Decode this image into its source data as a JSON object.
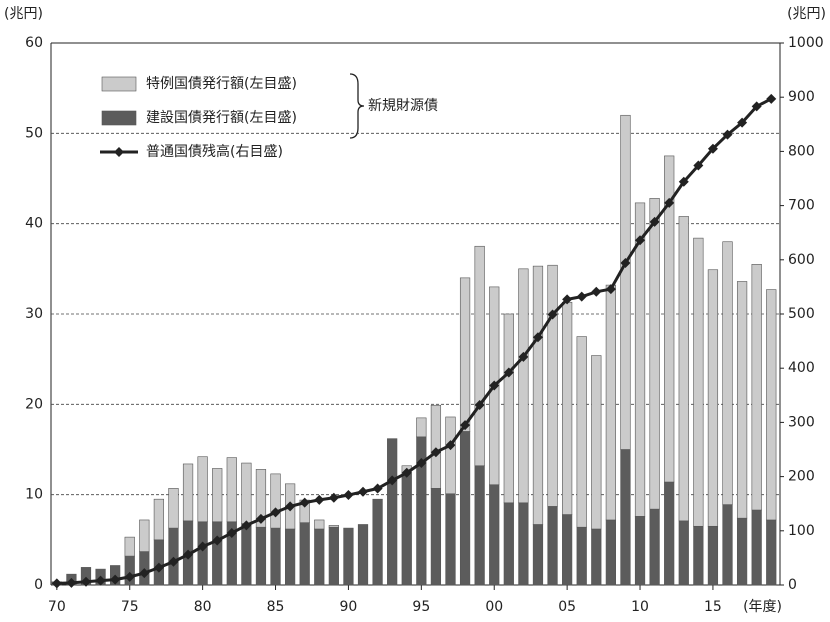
{
  "chart_data": {
    "type": "bar-line",
    "ylabel": "(兆円)",
    "y2label": "(兆円)",
    "xlabel": "(年度)",
    "annotation": "新規財源債",
    "x": [
      1970,
      1971,
      1972,
      1973,
      1974,
      1975,
      1976,
      1977,
      1978,
      1979,
      1980,
      1981,
      1982,
      1983,
      1984,
      1985,
      1986,
      1987,
      1988,
      1989,
      1990,
      1991,
      1992,
      1993,
      1994,
      1995,
      1996,
      1997,
      1998,
      1999,
      2000,
      2001,
      2002,
      2003,
      2004,
      2005,
      2006,
      2007,
      2008,
      2009,
      2010,
      2011,
      2012,
      2013,
      2014,
      2015,
      2016,
      2017,
      2018,
      2019
    ],
    "series": [
      {
        "name": "建設国債発行額(左目盛)",
        "color": "#5c5c5c",
        "stack": true,
        "values": [
          0.35,
          1.2,
          1.95,
          1.76,
          2.16,
          3.2,
          3.7,
          5.0,
          6.3,
          7.1,
          7.0,
          7.0,
          7.0,
          6.8,
          6.4,
          6.3,
          6.2,
          6.9,
          6.2,
          6.4,
          6.3,
          6.7,
          9.5,
          16.2,
          12.3,
          16.4,
          10.7,
          10.1,
          17.0,
          13.2,
          11.1,
          9.1,
          9.1,
          6.7,
          8.7,
          7.8,
          6.4,
          6.2,
          7.2,
          15.0,
          7.6,
          8.4,
          11.4,
          7.1,
          6.5,
          6.5,
          8.9,
          7.4,
          8.3,
          7.2
        ]
      },
      {
        "name": "特例国債発行額(左目盛)",
        "color": "#cbcbcb",
        "stack": true,
        "values": [
          0,
          0,
          0,
          0,
          0,
          2.1,
          3.5,
          4.5,
          4.4,
          6.3,
          7.2,
          5.9,
          7.1,
          6.7,
          6.4,
          6.0,
          5.0,
          2.5,
          1.0,
          0.2,
          0,
          0,
          0,
          0,
          0.9,
          2.1,
          9.2,
          8.5,
          17.0,
          24.3,
          21.9,
          20.9,
          25.9,
          28.6,
          26.7,
          23.5,
          21.1,
          19.2,
          26.0,
          37.0,
          34.7,
          34.4,
          36.1,
          33.7,
          31.9,
          28.4,
          29.1,
          26.2,
          27.2,
          25.5
        ]
      },
      {
        "name": "普通国債残高(右目盛)",
        "color": "#222222",
        "axis": "y2",
        "values": [
          3,
          4,
          6,
          8,
          10,
          15,
          22,
          32,
          43,
          56,
          71,
          82,
          96,
          110,
          122,
          134,
          145,
          152,
          157,
          161,
          166,
          172,
          178,
          193,
          207,
          225,
          245,
          258,
          295,
          332,
          368,
          392,
          421,
          457,
          499,
          527,
          532,
          541,
          546,
          594,
          636,
          670,
          705,
          744,
          774,
          805,
          831,
          853,
          883,
          897
        ]
      }
    ],
    "xlim": [
      1969.6,
      2019.6
    ],
    "xticks": [
      {
        "value": 1970,
        "label": "70"
      },
      {
        "value": 1975,
        "label": "75"
      },
      {
        "value": 1980,
        "label": "80"
      },
      {
        "value": 1985,
        "label": "85"
      },
      {
        "value": 1990,
        "label": "90"
      },
      {
        "value": 1995,
        "label": "95"
      },
      {
        "value": 2000,
        "label": "00"
      },
      {
        "value": 2005,
        "label": "05"
      },
      {
        "value": 2010,
        "label": "10"
      },
      {
        "value": 2015,
        "label": "15"
      }
    ],
    "ylim": [
      0,
      60
    ],
    "yticks": [
      0,
      10,
      20,
      30,
      40,
      50,
      60
    ],
    "y2lim": [
      0,
      1000
    ],
    "y2ticks": [
      0,
      100,
      200,
      300,
      400,
      500,
      600,
      700,
      800,
      900,
      1000
    ],
    "grid": true
  }
}
